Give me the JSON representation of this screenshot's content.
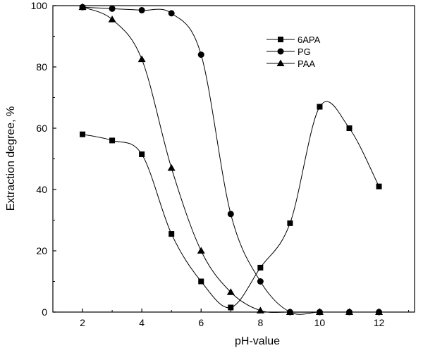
{
  "chart_data": {
    "type": "line",
    "xlabel": "pH-value",
    "ylabel": "Extraction degree, %",
    "xlim": [
      1,
      13.2
    ],
    "ylim": [
      0,
      100
    ],
    "x_ticks": [
      2,
      4,
      6,
      8,
      10,
      12
    ],
    "y_ticks": [
      0,
      20,
      40,
      60,
      80,
      100
    ],
    "legend_position": "top-right",
    "series": [
      {
        "name": "6APA",
        "marker": "square",
        "x": [
          2,
          3,
          4,
          5,
          6,
          7,
          8,
          9,
          10,
          11,
          12
        ],
        "y": [
          58,
          56,
          51.5,
          25.5,
          10,
          1.5,
          14.5,
          29,
          67,
          60,
          41
        ]
      },
      {
        "name": "PG",
        "marker": "circle",
        "x": [
          2,
          3,
          4,
          5,
          6,
          7,
          8,
          9,
          10,
          11,
          12
        ],
        "y": [
          99.5,
          99,
          98.5,
          97.5,
          84,
          32,
          10,
          0,
          0,
          0,
          0
        ]
      },
      {
        "name": "PAA",
        "marker": "triangle",
        "x": [
          2,
          3,
          4,
          5,
          6,
          7,
          8,
          9,
          10,
          11,
          12
        ],
        "y": [
          99.5,
          95.5,
          82.5,
          47,
          20,
          6.5,
          0.5,
          0,
          0,
          0,
          0
        ]
      }
    ]
  }
}
